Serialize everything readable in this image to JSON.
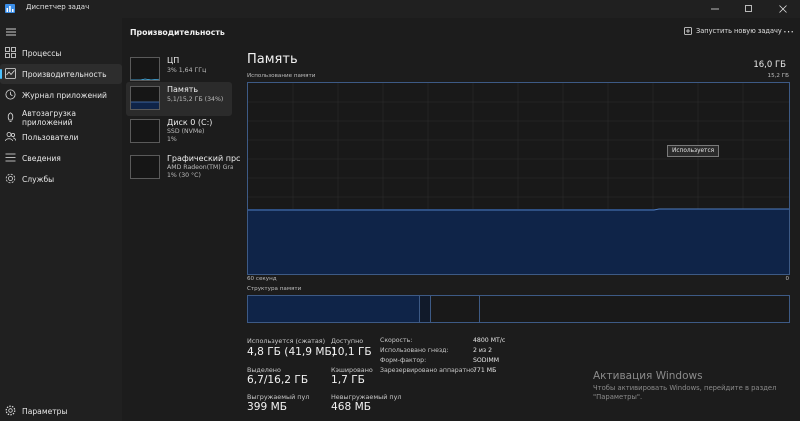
{
  "window": {
    "title": "Диспетчер задач"
  },
  "sidebar": {
    "items": [
      {
        "label": "Процессы",
        "icon": "grid-icon"
      },
      {
        "label": "Производительность",
        "icon": "performance-icon",
        "active": true
      },
      {
        "label": "Журнал приложений",
        "icon": "history-icon"
      },
      {
        "label": "Автозагрузка приложений",
        "icon": "startup-icon"
      },
      {
        "label": "Пользователи",
        "icon": "users-icon"
      },
      {
        "label": "Сведения",
        "icon": "details-icon"
      },
      {
        "label": "Службы",
        "icon": "services-icon"
      }
    ],
    "settings_label": "Параметры"
  },
  "header": {
    "title": "Производительность",
    "new_task_label": "Запустить новую задачу"
  },
  "resources": [
    {
      "name": "ЦП",
      "sub1": "3% 1,64 ГГц",
      "sub2": ""
    },
    {
      "name": "Память",
      "sub1": "5,1/15,2 ГБ (34%)",
      "sub2": ""
    },
    {
      "name": "Диск 0 (C:)",
      "sub1": "SSD (NVMe)",
      "sub2": "1%"
    },
    {
      "name": "Графический прс",
      "sub1": "AMD Radeon(TM) Grap",
      "sub2": "1% (30 °C)"
    }
  ],
  "memory": {
    "title": "Память",
    "total": "16,0 ГБ",
    "usage_label": "Использование памяти",
    "usage_max": "15,2 ГБ",
    "time_label": "60 секунд",
    "min_label": "0",
    "tooltip": "Используется",
    "usage_fraction": 0.34,
    "structure_label": "Структура памяти",
    "stats": {
      "in_use_label": "Используется (сжатая)",
      "in_use_value": "4,8 ГБ (41,9 МБ)",
      "available_label": "Доступно",
      "available_value": "10,1 ГБ",
      "committed_label": "Выделено",
      "committed_value": "6,7/16,2 ГБ",
      "cached_label": "Кэшировано",
      "cached_value": "1,7 ГБ",
      "paged_label": "Выгружаемый пул",
      "paged_value": "399 МБ",
      "nonpaged_label": "Невыгружаемый пул",
      "nonpaged_value": "468 МБ"
    },
    "props": {
      "speed_label": "Скорость:",
      "speed_value": "4800 МТ/с",
      "slots_label": "Использовано гнезд:",
      "slots_value": "2 из 2",
      "form_label": "Форм-фактор:",
      "form_value": "SODIMM",
      "reserved_label": "Зарезервировано аппаратно:",
      "reserved_value": "771 МБ"
    }
  },
  "activation": {
    "title": "Активация Windows",
    "text": "Чтобы активировать Windows, перейдите в раздел \"Параметры\"."
  },
  "colors": {
    "accent": "#4cc2ff",
    "graph_line": "#3d5a85",
    "graph_fill": "#0f2448"
  }
}
